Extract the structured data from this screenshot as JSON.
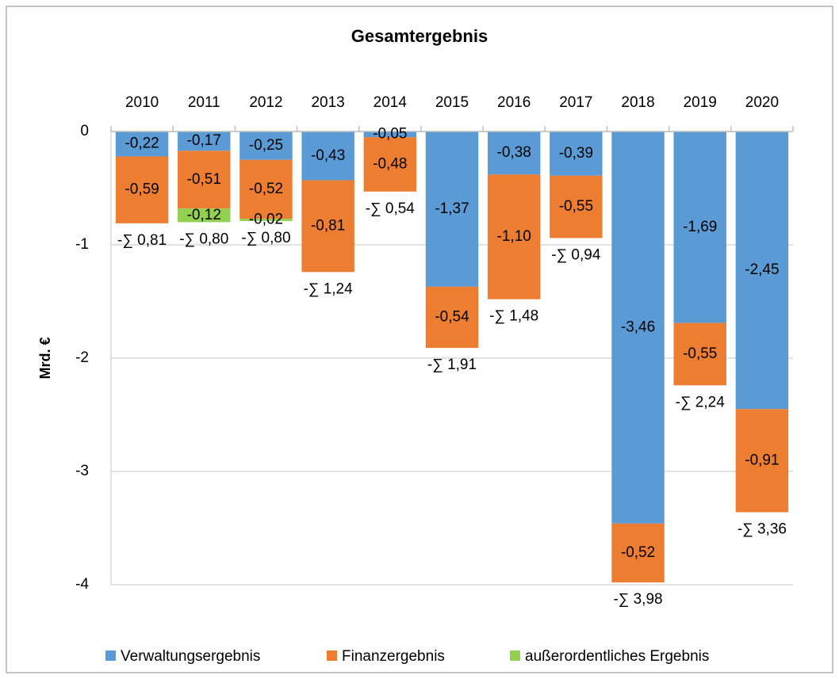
{
  "chart_data": {
    "type": "bar",
    "stacked": true,
    "title": "Gesamtergebnis",
    "y_label": "Mrd. €",
    "categories": [
      "2010",
      "2011",
      "2012",
      "2013",
      "2014",
      "2015",
      "2016",
      "2017",
      "2018",
      "2019",
      "2020"
    ],
    "series": [
      {
        "name": "Verwaltungsergebnis",
        "color": "#5b9bd5",
        "values": [
          -0.22,
          -0.17,
          -0.25,
          -0.43,
          -0.05,
          -1.37,
          -0.38,
          -0.39,
          -3.46,
          -1.69,
          -2.45
        ],
        "value_labels": [
          "-0,22",
          "-0,17",
          "-0,25",
          "-0,43",
          "-0,05",
          "-1,37",
          "-0,38",
          "-0,39",
          "-3,46",
          "-1,69",
          "-2,45"
        ]
      },
      {
        "name": "Finanzergebnis",
        "color": "#ed7d31",
        "values": [
          -0.59,
          -0.51,
          -0.52,
          -0.81,
          -0.48,
          -0.54,
          -1.1,
          -0.55,
          -0.52,
          -0.55,
          -0.91
        ],
        "value_labels": [
          "-0,59",
          "-0,51",
          "-0,52",
          "-0,81",
          "-0,48",
          "-0,54",
          "-1,10",
          "-0,55",
          "-0,52",
          "-0,55",
          "-0,91"
        ]
      },
      {
        "name": "außerordentliches Ergebnis",
        "color": "#92d050",
        "values": [
          null,
          -0.12,
          -0.02,
          null,
          null,
          null,
          null,
          null,
          null,
          null,
          null
        ],
        "value_labels": [
          null,
          "-0,12",
          "-0,02",
          null,
          null,
          null,
          null,
          null,
          null,
          null,
          null
        ]
      }
    ],
    "sum_labels": [
      "-∑ 0,81",
      "-∑ 0,80",
      "-∑ 0,80",
      "-∑ 1,24",
      "-∑ 0,54",
      "-∑ 1,91",
      "-∑ 1,48",
      "-∑ 0,94",
      "-∑ 3,98",
      "-∑ 2,24",
      "-∑ 3,36"
    ],
    "ylim": [
      -4,
      0
    ],
    "yticks": [
      0,
      -1,
      -2,
      -3,
      -4
    ],
    "grid": true,
    "legend": "bottom"
  }
}
